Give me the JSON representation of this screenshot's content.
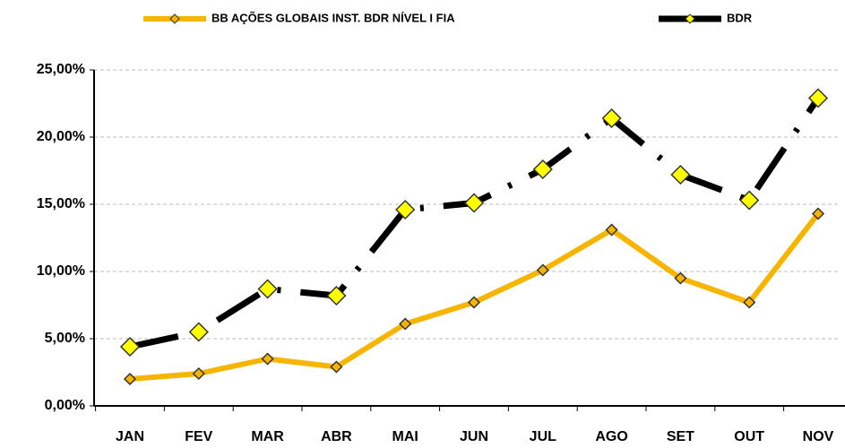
{
  "chart_data": {
    "type": "line",
    "categories": [
      "JAN",
      "FEV",
      "MAR",
      "ABR",
      "MAI",
      "JUN",
      "JUL",
      "AGO",
      "SET",
      "OUT",
      "NOV"
    ],
    "series": [
      {
        "name": "BB AÇÕES GLOBAIS INST. BDR NÍVEL I FIA",
        "color": "#f7b500",
        "marker_color": "#f7b500",
        "values": [
          2.0,
          2.4,
          3.5,
          2.9,
          6.1,
          7.7,
          10.1,
          13.1,
          9.5,
          7.7,
          14.3
        ]
      },
      {
        "name": "BDR",
        "color": "#000000",
        "marker_color": "#ffff00",
        "dashed": true,
        "values": [
          4.4,
          5.5,
          8.7,
          8.2,
          14.6,
          15.1,
          17.6,
          21.4,
          17.2,
          15.3,
          22.9
        ]
      }
    ],
    "ylim": [
      0,
      25
    ],
    "yticks": [
      {
        "value": 0,
        "label": "0,00%"
      },
      {
        "value": 5,
        "label": "5,00%"
      },
      {
        "value": 10,
        "label": "10,00%"
      },
      {
        "value": 15,
        "label": "15,00%"
      },
      {
        "value": 20,
        "label": "20,00%"
      },
      {
        "value": 25,
        "label": "25,00%"
      }
    ],
    "grid": true
  }
}
